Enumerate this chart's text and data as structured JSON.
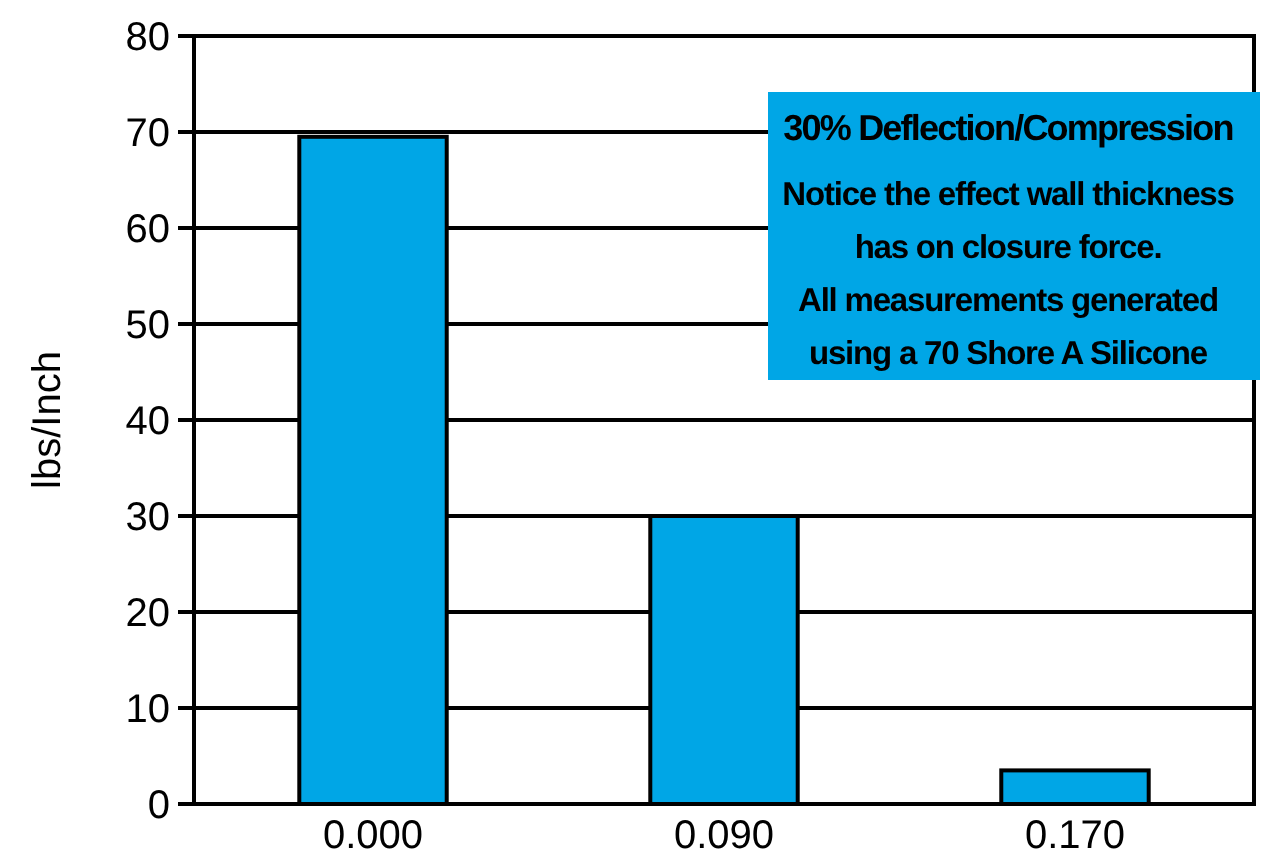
{
  "chart_data": {
    "type": "bar",
    "ylabel": "lbs/Inch",
    "categories": [
      "0.000",
      "0.090",
      "0.170"
    ],
    "values": [
      69.5,
      30,
      3.5
    ],
    "color": "#00a6e6",
    "ylim": [
      0,
      80
    ],
    "yticks": [
      0,
      10,
      20,
      30,
      40,
      50,
      60,
      70,
      80
    ],
    "grid": "y",
    "annotations": [
      "30% Deflection/Compression",
      "Notice the effect wall thickness",
      "has on closure force.",
      "All measurements generated",
      "using a 70 Shore A Silicone"
    ]
  }
}
